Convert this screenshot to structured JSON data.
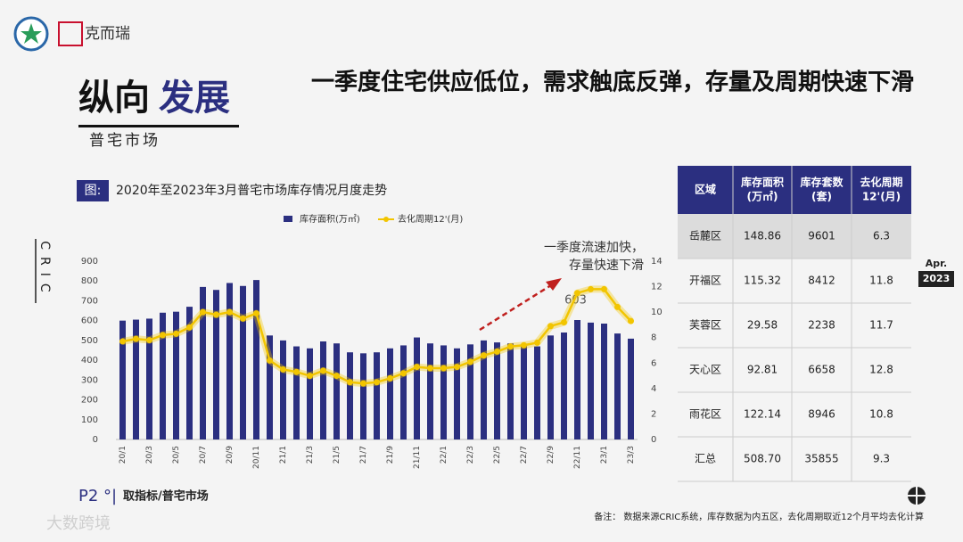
{
  "brand": "克而瑞",
  "headline": "一季度住宅供应低位，需求触底反弹，存量及周期快速下滑",
  "section": {
    "title_a": "纵向",
    "title_b": "发展",
    "subtitle": "普宅市场"
  },
  "figure_tag": "图:",
  "side_mark": "CRIC",
  "date_badge": {
    "month": "Apr.",
    "year": "2023"
  },
  "footer": {
    "page": "P2 °|",
    "label": "取指标/普宅市场",
    "note": "备注：   数据来源CRIC系统，库存数据为内五区，去化周期取近12个月平均去化计算",
    "watermark": "大数跨境"
  },
  "chart_data": {
    "type": "bar-line",
    "title": "2020年至2023年3月普宅市场库存情况月度走势",
    "annotations": [
      "一季度流速加快，",
      "存量快速下滑"
    ],
    "categories": [
      "20/1",
      null,
      "20/3",
      null,
      "20/5",
      null,
      "20/7",
      null,
      "20/9",
      null,
      "20/11",
      null,
      "21/1",
      null,
      "21/3",
      null,
      "21/5",
      null,
      "21/7",
      null,
      "21/9",
      null,
      "21/11",
      null,
      "22/1",
      null,
      "22/3",
      null,
      "22/5",
      null,
      "22/7",
      null,
      "22/9",
      null,
      "22/11",
      null,
      "23/1",
      null,
      "23/3"
    ],
    "series": [
      {
        "name": "库存面积(万㎡)",
        "type": "bar",
        "color": "#2b2f80",
        "values": [
          600,
          605,
          610,
          640,
          645,
          670,
          770,
          755,
          790,
          775,
          805,
          525,
          500,
          470,
          460,
          495,
          485,
          440,
          435,
          440,
          460,
          475,
          515,
          485,
          475,
          460,
          480,
          500,
          490,
          485,
          480,
          470,
          525,
          540,
          603,
          590,
          585,
          535,
          509
        ],
        "value_labels": [
          null,
          null,
          null,
          null,
          null,
          null,
          null,
          null,
          null,
          null,
          null,
          null,
          null,
          null,
          null,
          null,
          null,
          null,
          null,
          null,
          null,
          null,
          null,
          null,
          null,
          null,
          null,
          null,
          null,
          null,
          null,
          null,
          null,
          null,
          "603",
          null,
          null,
          null,
          null
        ]
      },
      {
        "name": "去化周期12'(月)",
        "type": "line",
        "axis": "y2",
        "color": "#f2c500",
        "values": [
          7.7,
          7.9,
          7.8,
          8.2,
          8.3,
          8.8,
          10.0,
          9.8,
          10.0,
          9.5,
          9.9,
          6.2,
          5.5,
          5.3,
          5.0,
          5.4,
          5.0,
          4.5,
          4.4,
          4.5,
          4.8,
          5.2,
          5.7,
          5.6,
          5.6,
          5.7,
          6.1,
          6.6,
          6.9,
          7.3,
          7.4,
          7.6,
          8.9,
          9.2,
          11.5,
          11.8,
          11.8,
          10.4,
          9.3
        ]
      }
    ],
    "ylim": [
      0,
      900
    ],
    "yticks": [
      0,
      100,
      200,
      300,
      400,
      500,
      600,
      700,
      800,
      900
    ],
    "y2lim": [
      0,
      14
    ],
    "y2ticks": [
      0,
      2,
      4,
      6,
      8,
      10,
      12,
      14
    ]
  },
  "table": {
    "header": [
      [
        "区域"
      ],
      [
        "库存面积",
        "(万㎡)"
      ],
      [
        "库存套数",
        "(套)"
      ],
      [
        "去化周期",
        "12'(月)"
      ]
    ],
    "rows": [
      [
        "岳麓区",
        "148.86",
        "9601",
        "6.3"
      ],
      [
        "开福区",
        "115.32",
        "8412",
        "11.8"
      ],
      [
        "芙蓉区",
        "29.58",
        "2238",
        "11.7"
      ],
      [
        "天心区",
        "92.81",
        "6658",
        "12.8"
      ],
      [
        "雨花区",
        "122.14",
        "8946",
        "10.8"
      ],
      [
        "汇总",
        "508.70",
        "35855",
        "9.3"
      ]
    ]
  }
}
